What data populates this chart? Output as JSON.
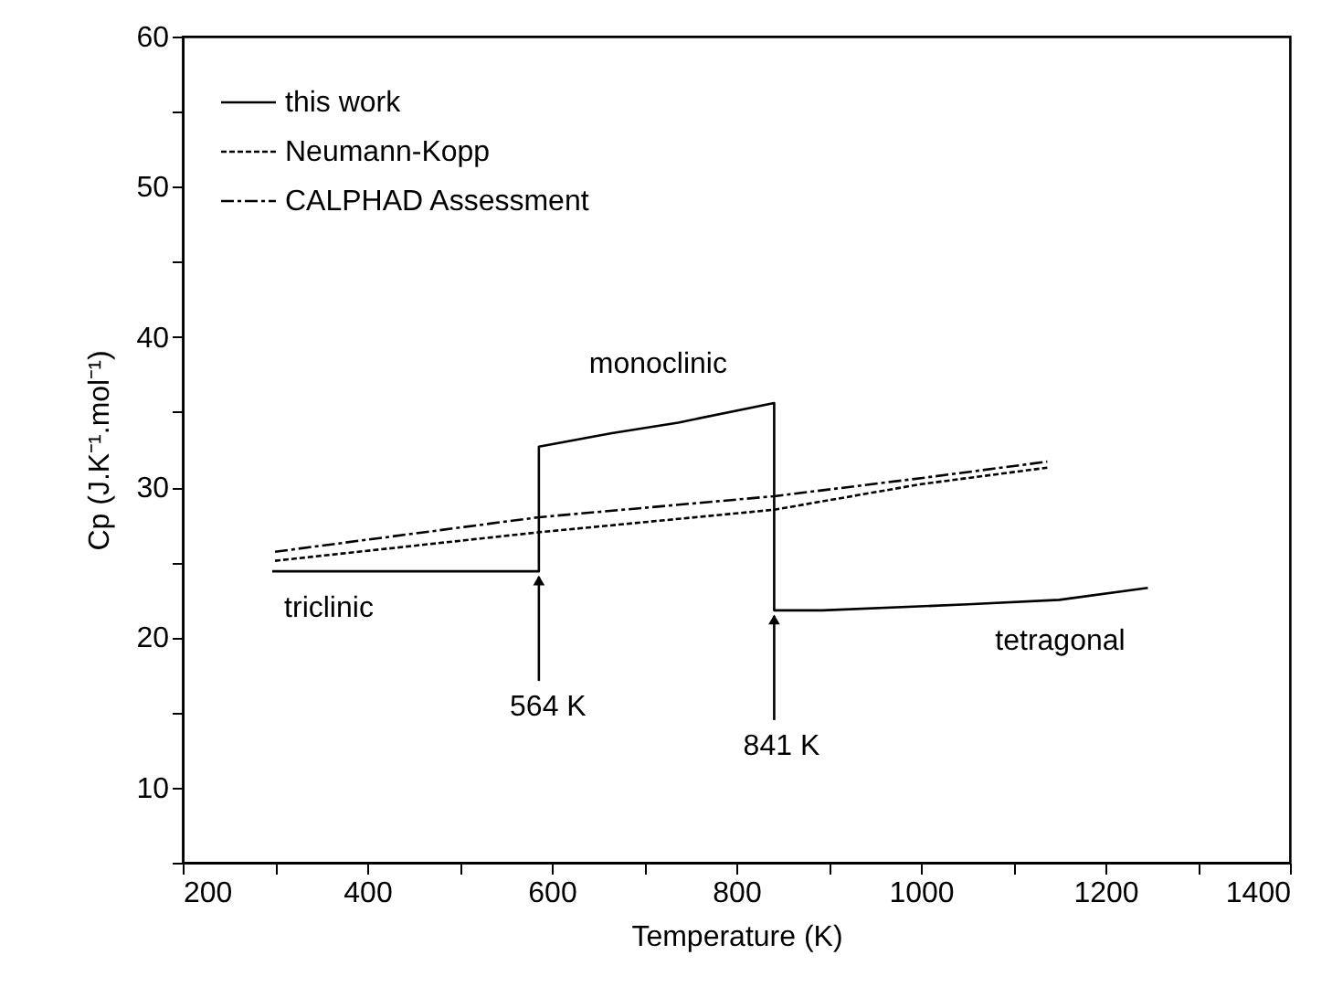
{
  "chart_data": {
    "type": "line",
    "xlabel": "Temperature (K)",
    "ylabel": "Cp (J.K⁻¹.mol⁻¹)",
    "xlim": [
      200,
      1400
    ],
    "ylim": [
      5,
      60
    ],
    "xticks": [
      200,
      {
        "value": 300,
        "label": null
      },
      400,
      {
        "value": 500,
        "label": null
      },
      600,
      {
        "value": 700,
        "label": null
      },
      800,
      {
        "value": 900,
        "label": null
      },
      1000,
      {
        "value": 1100,
        "label": null
      },
      1200,
      {
        "value": 1300,
        "label": null
      },
      1400
    ],
    "yticks": [
      {
        "value": 5,
        "label": null
      },
      10,
      {
        "value": 15,
        "label": null
      },
      20,
      {
        "value": 25,
        "label": null
      },
      30,
      {
        "value": 35,
        "label": null
      },
      40,
      {
        "value": 45,
        "label": null
      },
      50,
      {
        "value": 55,
        "label": null
      },
      60
    ],
    "grid": false,
    "legend": "top left",
    "marker": "none",
    "series": [
      {
        "name": "this work",
        "color": "#000000",
        "line_style": "solid",
        "x": [
          297,
          586,
          586,
          665,
          737,
          841,
          841,
          893,
          1051,
          1150,
          1246
        ],
        "values": [
          24.4,
          24.4,
          32.7,
          33.6,
          34.3,
          35.6,
          21.8,
          21.8,
          22.2,
          22.5,
          23.3
        ]
      },
      {
        "name": "Neumann-Kopp",
        "color": "#000000",
        "line_style": "dotted",
        "x": [
          300,
          586,
          841,
          1000,
          1137
        ],
        "values": [
          25.1,
          27.0,
          28.5,
          30.2,
          31.3
        ]
      },
      {
        "name": "CALPHAD Assessment",
        "color": "#000000",
        "line_style": "dashed",
        "x": [
          300,
          586,
          841,
          1000,
          1137
        ],
        "values": [
          25.7,
          28.0,
          29.4,
          30.6,
          31.7
        ]
      }
    ],
    "annotations": [
      {
        "text": "monoclinic",
        "x": 737,
        "y": 34.3
      },
      {
        "text": "triclinic",
        "x": 297,
        "y": 24.4
      },
      {
        "text": "tetragonal",
        "x": 1246,
        "y": 23.3
      },
      {
        "text": "564 K",
        "x": 586,
        "y": 24.4
      },
      {
        "text": "841 K",
        "x": 841,
        "y": 21.8
      }
    ]
  }
}
